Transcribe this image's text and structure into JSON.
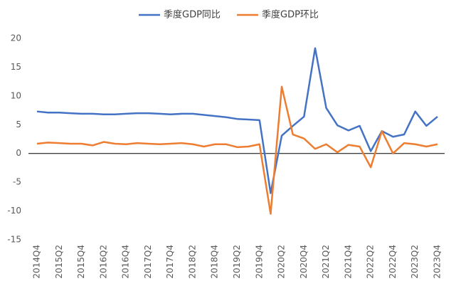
{
  "chart_data": {
    "type": "line",
    "categories": [
      "2014Q4",
      null,
      "2015Q2",
      null,
      "2015Q4",
      null,
      "2016Q2",
      null,
      "2016Q4",
      null,
      "2017Q2",
      null,
      "2017Q4",
      null,
      "2018Q2",
      null,
      "2018Q4",
      null,
      "2019Q2",
      null,
      "2019Q4",
      null,
      "2020Q2",
      null,
      "2020Q4",
      null,
      "2021Q2",
      null,
      "2021Q4",
      null,
      "2022Q2",
      null,
      "2022Q4",
      null,
      "2023Q2",
      null,
      "2023Q4"
    ],
    "series": [
      {
        "name": "季度GDP同比",
        "color": "#4472c4",
        "values": [
          7.3,
          7.1,
          7.1,
          7.0,
          6.9,
          6.9,
          6.8,
          6.8,
          6.9,
          7.0,
          7.0,
          6.9,
          6.8,
          6.9,
          6.9,
          6.7,
          6.5,
          6.3,
          6.0,
          5.9,
          5.8,
          -6.9,
          3.1,
          4.8,
          6.4,
          18.3,
          7.9,
          4.9,
          4.0,
          4.8,
          0.4,
          3.9,
          2.9,
          3.3,
          7.3,
          4.8,
          6.4
        ]
      },
      {
        "name": "季度GDP环比",
        "color": "#ed7d31",
        "values": [
          1.7,
          1.9,
          1.8,
          1.7,
          1.7,
          1.4,
          2.0,
          1.7,
          1.6,
          1.8,
          1.7,
          1.6,
          1.7,
          1.8,
          1.6,
          1.2,
          1.6,
          1.6,
          1.1,
          1.2,
          1.6,
          -10.5,
          11.6,
          3.3,
          2.6,
          0.8,
          1.6,
          0.2,
          1.5,
          1.2,
          -2.4,
          3.9,
          0.0,
          1.8,
          1.6,
          1.2,
          1.6
        ]
      }
    ],
    "ylim": [
      -15,
      20
    ],
    "yticks": [
      -15,
      -10,
      -5,
      0,
      5,
      10,
      15,
      20
    ],
    "legend": "top"
  }
}
